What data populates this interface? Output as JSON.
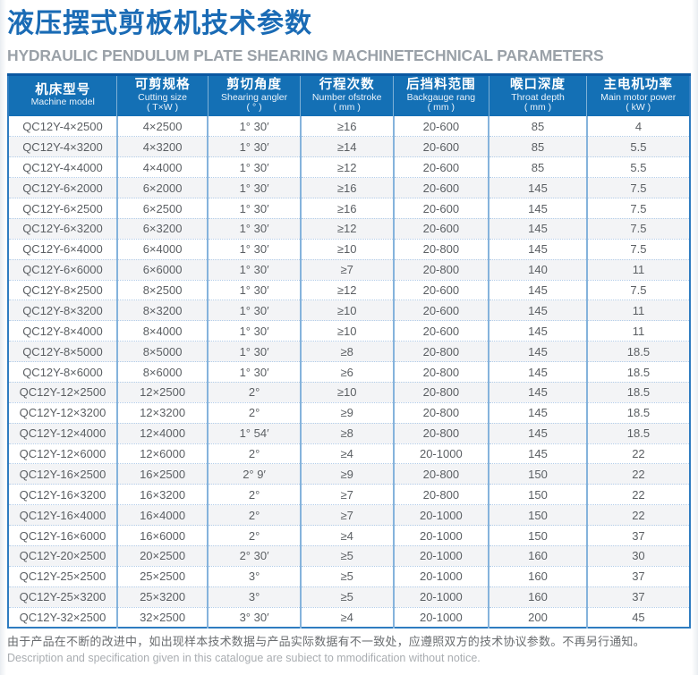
{
  "header": {
    "title": "液压摆式剪板机技术参数",
    "subtitle": "HYDRAULIC PENDULUM PLATE SHEARING MACHINETECHNICAL PARAMETERS"
  },
  "table": {
    "columns": [
      {
        "cn": "机床型号",
        "en": "Machine model",
        "unit": ""
      },
      {
        "cn": "可剪规格",
        "en": "Cutting size",
        "unit": "( T×W )"
      },
      {
        "cn": "剪切角度",
        "en": "Shearing angler",
        "unit": "( ° )"
      },
      {
        "cn": "行程次数",
        "en": "Number ofstroke",
        "unit": "( mm )"
      },
      {
        "cn": "后挡料范围",
        "en": "Backgauge rang",
        "unit": "( mm )"
      },
      {
        "cn": "喉口深度",
        "en": "Throat depth",
        "unit": "( mm )"
      },
      {
        "cn": "主电机功率",
        "en": "Main motor power",
        "unit": "( kW )"
      }
    ],
    "rows": [
      [
        "QC12Y-4×2500",
        "4×2500",
        "1° 30′",
        "≥16",
        "20-600",
        "85",
        "4"
      ],
      [
        "QC12Y-4×3200",
        "4×3200",
        "1° 30′",
        "≥14",
        "20-600",
        "85",
        "5.5"
      ],
      [
        "QC12Y-4×4000",
        "4×4000",
        "1° 30′",
        "≥12",
        "20-600",
        "85",
        "5.5"
      ],
      [
        "QC12Y-6×2000",
        "6×2000",
        "1° 30′",
        "≥16",
        "20-600",
        "145",
        "7.5"
      ],
      [
        "QC12Y-6×2500",
        "6×2500",
        "1° 30′",
        "≥16",
        "20-600",
        "145",
        "7.5"
      ],
      [
        "QC12Y-6×3200",
        "6×3200",
        "1° 30′",
        "≥12",
        "20-600",
        "145",
        "7.5"
      ],
      [
        "QC12Y-6×4000",
        "6×4000",
        "1° 30′",
        "≥10",
        "20-800",
        "145",
        "7.5"
      ],
      [
        "QC12Y-6×6000",
        "6×6000",
        "1° 30′",
        "≥7",
        "20-800",
        "140",
        "11"
      ],
      [
        "QC12Y-8×2500",
        "8×2500",
        "1° 30′",
        "≥12",
        "20-600",
        "145",
        "7.5"
      ],
      [
        "QC12Y-8×3200",
        "8×3200",
        "1° 30′",
        "≥10",
        "20-600",
        "145",
        "11"
      ],
      [
        "QC12Y-8×4000",
        "8×4000",
        "1° 30′",
        "≥10",
        "20-600",
        "145",
        "11"
      ],
      [
        "QC12Y-8×5000",
        "8×5000",
        "1° 30′",
        "≥8",
        "20-800",
        "145",
        "18.5"
      ],
      [
        "QC12Y-8×6000",
        "8×6000",
        "1° 30′",
        "≥6",
        "20-800",
        "145",
        "18.5"
      ],
      [
        "QC12Y-12×2500",
        "12×2500",
        "2°",
        "≥10",
        "20-800",
        "145",
        "18.5"
      ],
      [
        "QC12Y-12×3200",
        "12×3200",
        "2°",
        "≥9",
        "20-800",
        "145",
        "18.5"
      ],
      [
        "QC12Y-12×4000",
        "12×4000",
        "1° 54′",
        "≥8",
        "20-800",
        "145",
        "18.5"
      ],
      [
        "QC12Y-12×6000",
        "12×6000",
        "2°",
        "≥4",
        "20-1000",
        "145",
        "22"
      ],
      [
        "QC12Y-16×2500",
        "16×2500",
        "2° 9′",
        "≥9",
        "20-800",
        "150",
        "22"
      ],
      [
        "QC12Y-16×3200",
        "16×3200",
        "2°",
        "≥7",
        "20-800",
        "150",
        "22"
      ],
      [
        "QC12Y-16×4000",
        "16×4000",
        "2°",
        "≥7",
        "20-1000",
        "150",
        "22"
      ],
      [
        "QC12Y-16×6000",
        "16×6000",
        "2°",
        "≥4",
        "20-1000",
        "150",
        "37"
      ],
      [
        "QC12Y-20×2500",
        "20×2500",
        "2° 30′",
        "≥5",
        "20-1000",
        "160",
        "30"
      ],
      [
        "QC12Y-25×2500",
        "25×2500",
        "3°",
        "≥5",
        "20-1000",
        "160",
        "37"
      ],
      [
        "QC12Y-25×3200",
        "25×3200",
        "3°",
        "≥5",
        "20-1000",
        "160",
        "37"
      ],
      [
        "QC12Y-32×2500",
        "32×2500",
        "3° 30′",
        "≥4",
        "20-1000",
        "200",
        "45"
      ]
    ]
  },
  "footer": {
    "note_cn": "由于产品在不断的改进中，如出现样本技术数据与产品实际数据有不一致处，应遵照双方的技术协议参数。不再另行通知。",
    "note_en": "Description and specification given in this catalogue are subiect to mmodification without notice."
  },
  "colors": {
    "title_blue": "#1a6bb5",
    "header_blue": "#1470b5",
    "header_top_strip": "#0b58a1",
    "table_border": "#2e7cc0",
    "column_divider": "#85b3dc",
    "row_dotted_line": "#b3cde9",
    "row_alt_background": "#f3f4f6",
    "subtitle_gray": "#9aa1a8"
  }
}
